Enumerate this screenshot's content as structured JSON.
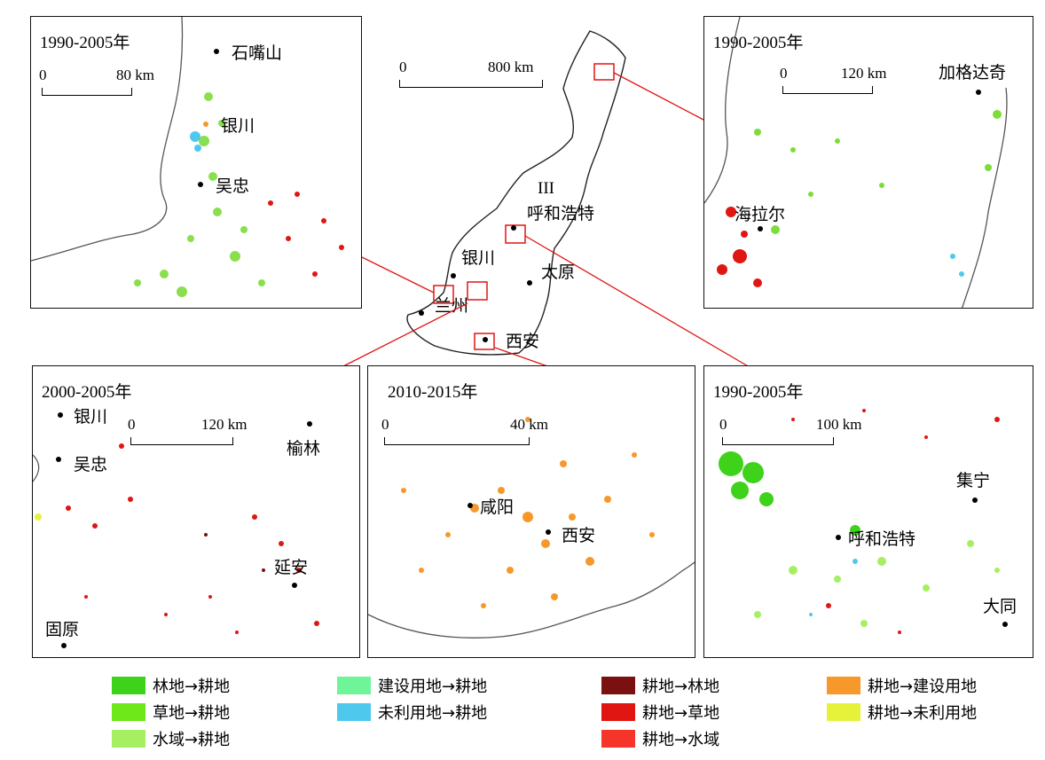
{
  "panels": {
    "ningxia": {
      "period": "1990-2005年",
      "scale_start": "0",
      "scale_end": "80 km",
      "cities": [
        "石嘴山",
        "银川",
        "吴忠"
      ]
    },
    "hulunbuir": {
      "period": "1990-2005年",
      "scale_start": "0",
      "scale_end": "120 km",
      "cities": [
        "加格达奇",
        "海拉尔"
      ]
    },
    "central": {
      "scale_start": "0",
      "scale_end": "800 km",
      "region": "III",
      "cities": [
        "呼和浩特",
        "银川",
        "太原",
        "兰州",
        "西安"
      ]
    },
    "shaanbei": {
      "period": "2000-2005年",
      "scale_start": "0",
      "scale_end": "120 km",
      "cities": [
        "银川",
        "吴忠",
        "榆林",
        "延安",
        "固原"
      ]
    },
    "xian": {
      "period": "2010-2015年",
      "scale_start": "0",
      "scale_end": "40 km",
      "cities": [
        "咸阳",
        "西安"
      ]
    },
    "hohhot": {
      "period": "1990-2005年",
      "scale_start": "0",
      "scale_end": "100 km",
      "cities": [
        "集宁",
        "呼和浩特",
        "大同"
      ]
    }
  },
  "legend": [
    {
      "label": "林地→耕地",
      "color": "#3ed21b"
    },
    {
      "label": "草地→耕地",
      "color": "#6fe81a"
    },
    {
      "label": "水域→耕地",
      "color": "#a6ef62"
    },
    {
      "label": "建设用地→耕地",
      "color": "#6ef59a"
    },
    {
      "label": "未利用地→耕地",
      "color": "#4fc8ee"
    },
    {
      "label": "耕地→林地",
      "color": "#7a1010"
    },
    {
      "label": "耕地→草地",
      "color": "#e01612"
    },
    {
      "label": "耕地→水域",
      "color": "#f5352a"
    },
    {
      "label": "耕地→建设用地",
      "color": "#f7982a"
    },
    {
      "label": "耕地→未利用地",
      "color": "#e6f23a"
    }
  ]
}
